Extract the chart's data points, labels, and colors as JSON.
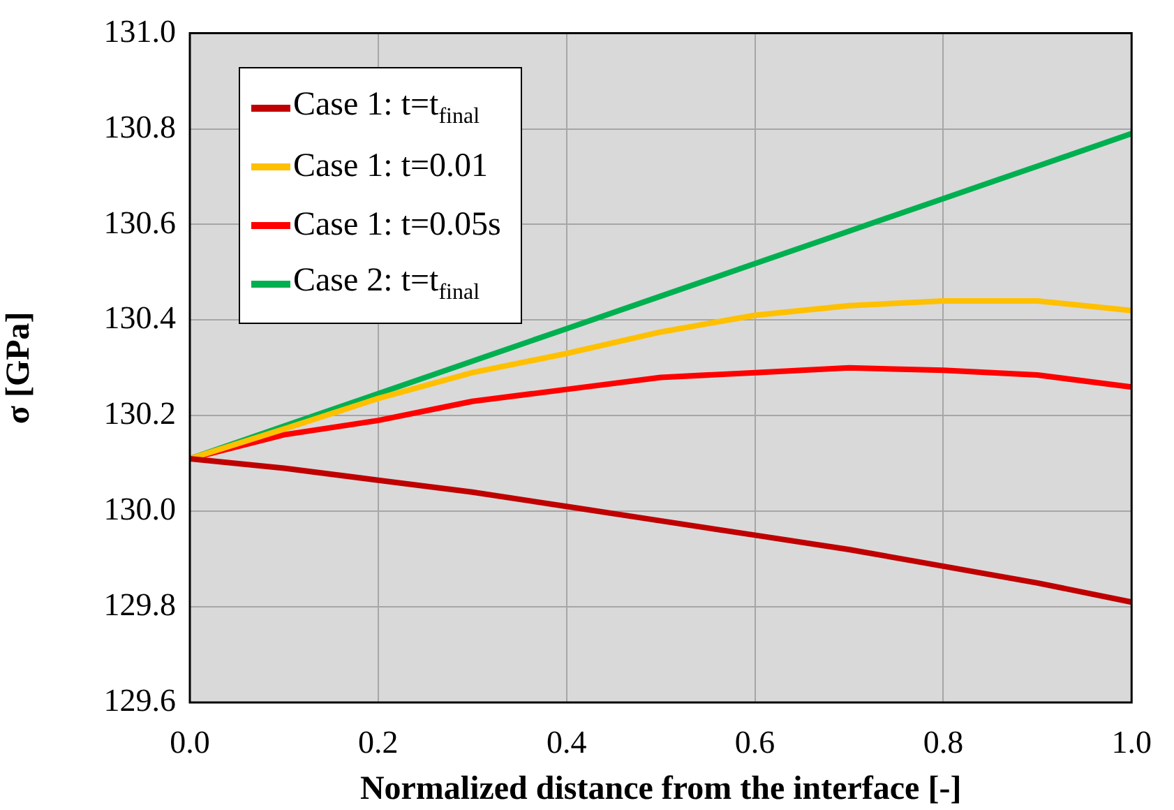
{
  "chart_data": {
    "type": "line",
    "xlabel": "Normalized distance from the interface [-]",
    "ylabel": "σ [GPa]",
    "x": [
      0,
      0.1,
      0.2,
      0.3,
      0.4,
      0.5,
      0.6,
      0.7,
      0.8,
      0.9,
      1.0
    ],
    "series": [
      {
        "name": "Case 1: t=t$_{final}$",
        "color": "#c00000",
        "values": [
          130.11,
          130.09,
          130.065,
          130.04,
          130.01,
          129.98,
          129.95,
          129.92,
          129.885,
          129.85,
          129.81
        ]
      },
      {
        "name": "Case 1: t=0.01",
        "color": "#ffc000",
        "values": [
          130.11,
          130.172,
          130.236,
          130.29,
          130.33,
          130.375,
          130.41,
          130.43,
          130.44,
          130.44,
          130.42
        ]
      },
      {
        "name": "Case 1: t=0.05s",
        "color": "#ff0000",
        "values": [
          130.11,
          130.16,
          130.19,
          130.23,
          130.255,
          130.28,
          130.29,
          130.3,
          130.295,
          130.285,
          130.26
        ]
      },
      {
        "name": "Case 2: t=t$_{final}$",
        "color": "#00b050",
        "values": [
          130.11,
          130.178,
          130.246,
          130.314,
          130.382,
          130.45,
          130.518,
          130.586,
          130.654,
          130.722,
          130.79
        ]
      }
    ],
    "xlim": [
      0,
      1.0
    ],
    "xticks": [
      {
        "value": 0,
        "label": "0.0"
      },
      0.2,
      0.4,
      0.6,
      0.8,
      {
        "value": 1,
        "label": "1.0"
      }
    ],
    "ylim": [
      129.6,
      131.0
    ],
    "yticks": [
      129.6,
      129.8,
      {
        "value": 130,
        "label": "130.0"
      },
      130.2,
      130.4,
      130.6,
      130.8,
      {
        "value": 131,
        "label": "131.0"
      }
    ],
    "grid": true,
    "legend": "top left",
    "marker": "none",
    "line_style": "solid"
  }
}
